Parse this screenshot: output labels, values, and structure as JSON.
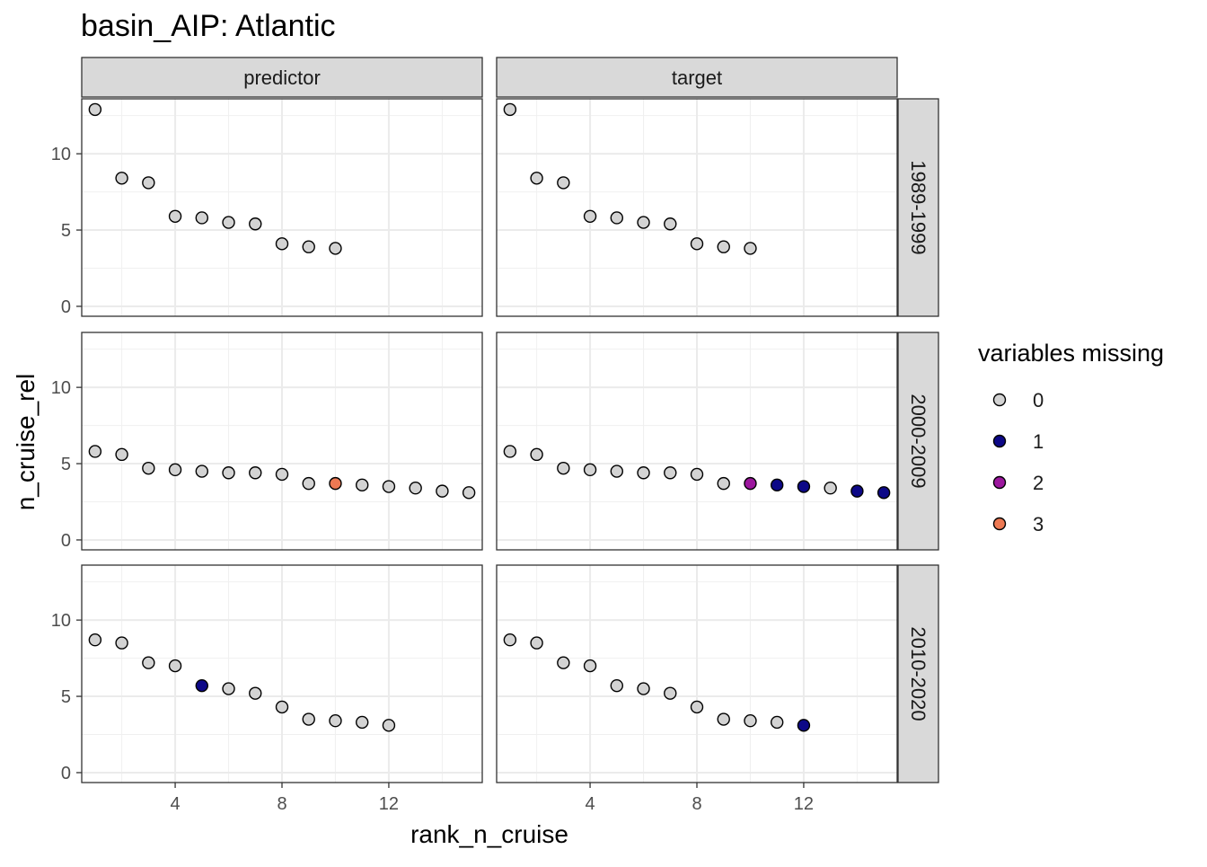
{
  "chart_data": {
    "type": "scatter",
    "title": "basin_AIP: Atlantic",
    "xlabel": "rank_n_cruise",
    "ylabel": "n_cruise_rel",
    "xlim": [
      0.5,
      15.5
    ],
    "ylim": [
      -0.65,
      13.6
    ],
    "xticks": [
      4,
      8,
      12
    ],
    "yticks": [
      0,
      5,
      10
    ],
    "grid": true,
    "legend_position": "right",
    "legend": {
      "title": "variables missing",
      "entries": [
        {
          "label": "0",
          "color": "#d3d3d3"
        },
        {
          "label": "1",
          "color": "#0d0887"
        },
        {
          "label": "2",
          "color": "#9c179e"
        },
        {
          "label": "3",
          "color": "#ed7953"
        }
      ]
    },
    "facet_columns": [
      "predictor",
      "target"
    ],
    "facet_rows": [
      "1989-1999",
      "2000-2009",
      "2010-2020"
    ],
    "panels": [
      {
        "column": "predictor",
        "row": "1989-1999",
        "points": [
          {
            "x": 1,
            "y": 12.9,
            "missing": 0
          },
          {
            "x": 2,
            "y": 8.4,
            "missing": 0
          },
          {
            "x": 3,
            "y": 8.1,
            "missing": 0
          },
          {
            "x": 4,
            "y": 5.9,
            "missing": 0
          },
          {
            "x": 5,
            "y": 5.8,
            "missing": 0
          },
          {
            "x": 6,
            "y": 5.5,
            "missing": 0
          },
          {
            "x": 7,
            "y": 5.4,
            "missing": 0
          },
          {
            "x": 8,
            "y": 4.1,
            "missing": 0
          },
          {
            "x": 9,
            "y": 3.9,
            "missing": 0
          },
          {
            "x": 10,
            "y": 3.8,
            "missing": 0
          }
        ]
      },
      {
        "column": "target",
        "row": "1989-1999",
        "points": [
          {
            "x": 1,
            "y": 12.9,
            "missing": 0
          },
          {
            "x": 2,
            "y": 8.4,
            "missing": 0
          },
          {
            "x": 3,
            "y": 8.1,
            "missing": 0
          },
          {
            "x": 4,
            "y": 5.9,
            "missing": 0
          },
          {
            "x": 5,
            "y": 5.8,
            "missing": 0
          },
          {
            "x": 6,
            "y": 5.5,
            "missing": 0
          },
          {
            "x": 7,
            "y": 5.4,
            "missing": 0
          },
          {
            "x": 8,
            "y": 4.1,
            "missing": 0
          },
          {
            "x": 9,
            "y": 3.9,
            "missing": 0
          },
          {
            "x": 10,
            "y": 3.8,
            "missing": 0
          }
        ]
      },
      {
        "column": "predictor",
        "row": "2000-2009",
        "points": [
          {
            "x": 1,
            "y": 5.8,
            "missing": 0
          },
          {
            "x": 2,
            "y": 5.6,
            "missing": 0
          },
          {
            "x": 3,
            "y": 4.7,
            "missing": 0
          },
          {
            "x": 4,
            "y": 4.6,
            "missing": 0
          },
          {
            "x": 5,
            "y": 4.5,
            "missing": 0
          },
          {
            "x": 6,
            "y": 4.4,
            "missing": 0
          },
          {
            "x": 7,
            "y": 4.4,
            "missing": 0
          },
          {
            "x": 8,
            "y": 4.3,
            "missing": 0
          },
          {
            "x": 9,
            "y": 3.7,
            "missing": 0
          },
          {
            "x": 10,
            "y": 3.7,
            "missing": 3
          },
          {
            "x": 11,
            "y": 3.6,
            "missing": 0
          },
          {
            "x": 12,
            "y": 3.5,
            "missing": 0
          },
          {
            "x": 13,
            "y": 3.4,
            "missing": 0
          },
          {
            "x": 14,
            "y": 3.2,
            "missing": 0
          },
          {
            "x": 15,
            "y": 3.1,
            "missing": 0
          }
        ]
      },
      {
        "column": "target",
        "row": "2000-2009",
        "points": [
          {
            "x": 1,
            "y": 5.8,
            "missing": 0
          },
          {
            "x": 2,
            "y": 5.6,
            "missing": 0
          },
          {
            "x": 3,
            "y": 4.7,
            "missing": 0
          },
          {
            "x": 4,
            "y": 4.6,
            "missing": 0
          },
          {
            "x": 5,
            "y": 4.5,
            "missing": 0
          },
          {
            "x": 6,
            "y": 4.4,
            "missing": 0
          },
          {
            "x": 7,
            "y": 4.4,
            "missing": 0
          },
          {
            "x": 8,
            "y": 4.3,
            "missing": 0
          },
          {
            "x": 9,
            "y": 3.7,
            "missing": 0
          },
          {
            "x": 10,
            "y": 3.7,
            "missing": 2
          },
          {
            "x": 11,
            "y": 3.6,
            "missing": 1
          },
          {
            "x": 12,
            "y": 3.5,
            "missing": 1
          },
          {
            "x": 13,
            "y": 3.4,
            "missing": 0
          },
          {
            "x": 14,
            "y": 3.2,
            "missing": 1
          },
          {
            "x": 15,
            "y": 3.1,
            "missing": 1
          }
        ]
      },
      {
        "column": "predictor",
        "row": "2010-2020",
        "points": [
          {
            "x": 1,
            "y": 8.7,
            "missing": 0
          },
          {
            "x": 2,
            "y": 8.5,
            "missing": 0
          },
          {
            "x": 3,
            "y": 7.2,
            "missing": 0
          },
          {
            "x": 4,
            "y": 7.0,
            "missing": 0
          },
          {
            "x": 5,
            "y": 5.7,
            "missing": 1
          },
          {
            "x": 6,
            "y": 5.5,
            "missing": 0
          },
          {
            "x": 7,
            "y": 5.2,
            "missing": 0
          },
          {
            "x": 8,
            "y": 4.3,
            "missing": 0
          },
          {
            "x": 9,
            "y": 3.5,
            "missing": 0
          },
          {
            "x": 10,
            "y": 3.4,
            "missing": 0
          },
          {
            "x": 11,
            "y": 3.3,
            "missing": 0
          },
          {
            "x": 12,
            "y": 3.1,
            "missing": 0
          }
        ]
      },
      {
        "column": "target",
        "row": "2010-2020",
        "points": [
          {
            "x": 1,
            "y": 8.7,
            "missing": 0
          },
          {
            "x": 2,
            "y": 8.5,
            "missing": 0
          },
          {
            "x": 3,
            "y": 7.2,
            "missing": 0
          },
          {
            "x": 4,
            "y": 7.0,
            "missing": 0
          },
          {
            "x": 5,
            "y": 5.7,
            "missing": 0
          },
          {
            "x": 6,
            "y": 5.5,
            "missing": 0
          },
          {
            "x": 7,
            "y": 5.2,
            "missing": 0
          },
          {
            "x": 8,
            "y": 4.3,
            "missing": 0
          },
          {
            "x": 9,
            "y": 3.5,
            "missing": 0
          },
          {
            "x": 10,
            "y": 3.4,
            "missing": 0
          },
          {
            "x": 11,
            "y": 3.3,
            "missing": 0
          },
          {
            "x": 12,
            "y": 3.1,
            "missing": 1
          }
        ]
      }
    ]
  }
}
